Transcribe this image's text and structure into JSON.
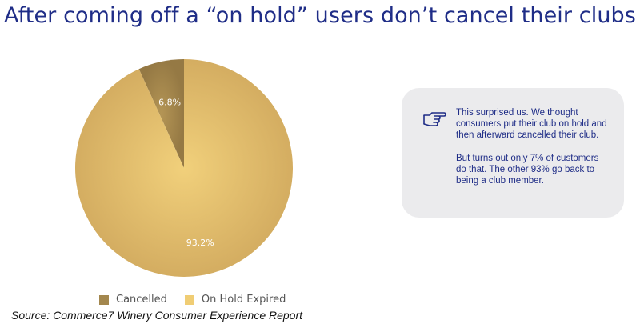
{
  "title": "After coming off a “on hold” users don’t cancel their clubs",
  "callout": {
    "icon": "pointing-hand-icon",
    "paragraph1": "This surprised us.  We thought consumers put their club on hold and then afterward cancelled their club.",
    "paragraph2": "But turns out only 7% of customers do that.  The other 93% go back to being a club member."
  },
  "source": "Source: Commerce7 Winery Consumer Experience Report",
  "chart_data": {
    "type": "pie",
    "categories": [
      "Cancelled",
      "On Hold Expired"
    ],
    "values": [
      6.8,
      93.2
    ],
    "data_labels": [
      "6.8%",
      "93.2%"
    ],
    "colors": [
      "#a3874e",
      "#e2bd67"
    ],
    "legend_position": "bottom"
  }
}
